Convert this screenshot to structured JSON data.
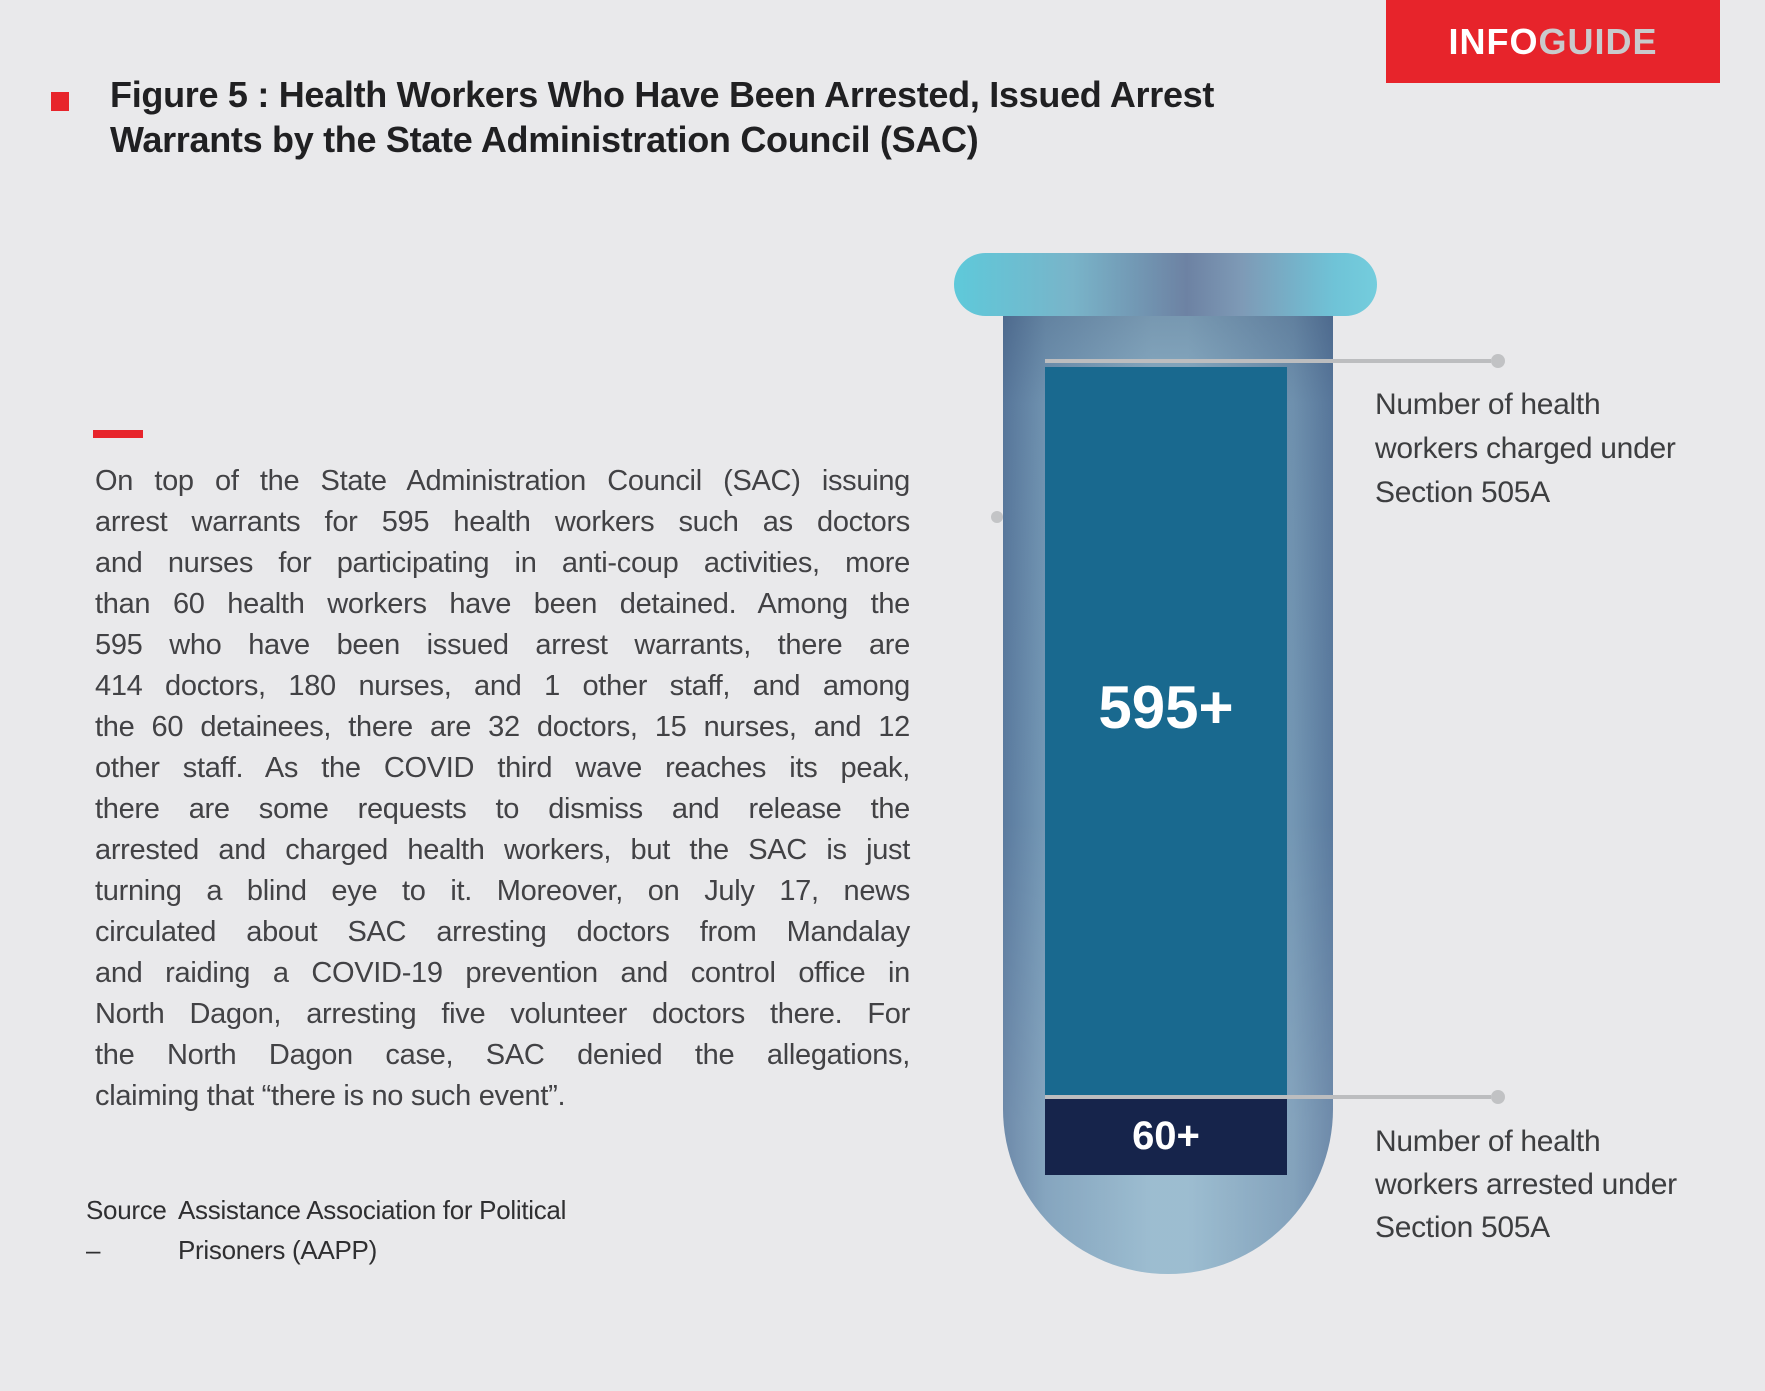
{
  "banner": {
    "info": "INFO",
    "guide": "GUIDE",
    "background": "#e7242b",
    "guide_color": "#c9cacc"
  },
  "figure_title": {
    "line1": "Figure 5 : Health Workers Who Have Been Arrested, Issued Arrest",
    "line2": "Warrants by the State Administration Council (SAC)",
    "bullet_color": "#e7242b"
  },
  "body_text": {
    "accent_color": "#e7242b",
    "lines": [
      "On top of the State Administration Council (SAC) issuing",
      "arrest warrants for 595 health workers such as doctors",
      "and nurses for participating in anti-coup activities, more",
      "than 60 health workers have been detained. Among the",
      "595 who have been issued arrest warrants, there are",
      "414 doctors, 180 nurses, and 1 other staff, and among",
      "the 60 detainees, there are 32 doctors, 15 nurses, and 12",
      "other staff.  As the COVID third wave reaches its peak,",
      "there are some requests to dismiss and release the",
      "arrested and charged health workers, but the SAC is just",
      "turning a blind eye to it. Moreover, on July 17, news",
      "circulated about SAC arresting doctors from Mandalay",
      "and raiding a COVID-19 prevention and control office in",
      "North Dagon, arresting five volunteer doctors there. For",
      "the North Dagon case, SAC denied the allegations,",
      "claiming that “there is no such event”."
    ]
  },
  "source": {
    "label": "Source –",
    "text": "Assistance Association for Political Prisoners (AAPP)",
    "line1": "Assistance Association for Political",
    "line2": "Prisoners (AAPP)"
  },
  "tube": {
    "charged_value": "595+",
    "arrested_value": "60+",
    "charged_label_lines": [
      "Number of health",
      "workers charged under",
      "Section 505A"
    ],
    "arrested_label_lines": [
      "Number of health",
      "workers arrested under",
      "Section 505A"
    ],
    "fill_color": "#19698f",
    "band_color": "#16244b",
    "cap_cyan": "#5ec9da",
    "cap_slate": "#6d82a3",
    "glass_edge": "#5a7a9e",
    "glass_center": "#8fb4ca",
    "connector_color": "#bcbdbf"
  },
  "chart_data": {
    "type": "bar",
    "style": "test-tube infographic",
    "title": "Figure 5 : Health Workers Who Have Been Arrested, Issued Arrest Warrants by the State Administration Council (SAC)",
    "categories": [
      "Number of health workers charged under Section 505A",
      "Number of health workers arrested under Section 505A"
    ],
    "values": [
      595,
      60
    ],
    "value_labels": [
      "595+",
      "60+"
    ],
    "series_colors": [
      "#19698f",
      "#16244b"
    ],
    "annotations": {
      "charged_breakdown": {
        "doctors": 414,
        "nurses": 180,
        "other_staff": 1
      },
      "detained_breakdown": {
        "doctors": 32,
        "nurses": 15,
        "other_staff": 12
      }
    },
    "source": "Assistance Association for Political Prisoners (AAPP)"
  }
}
